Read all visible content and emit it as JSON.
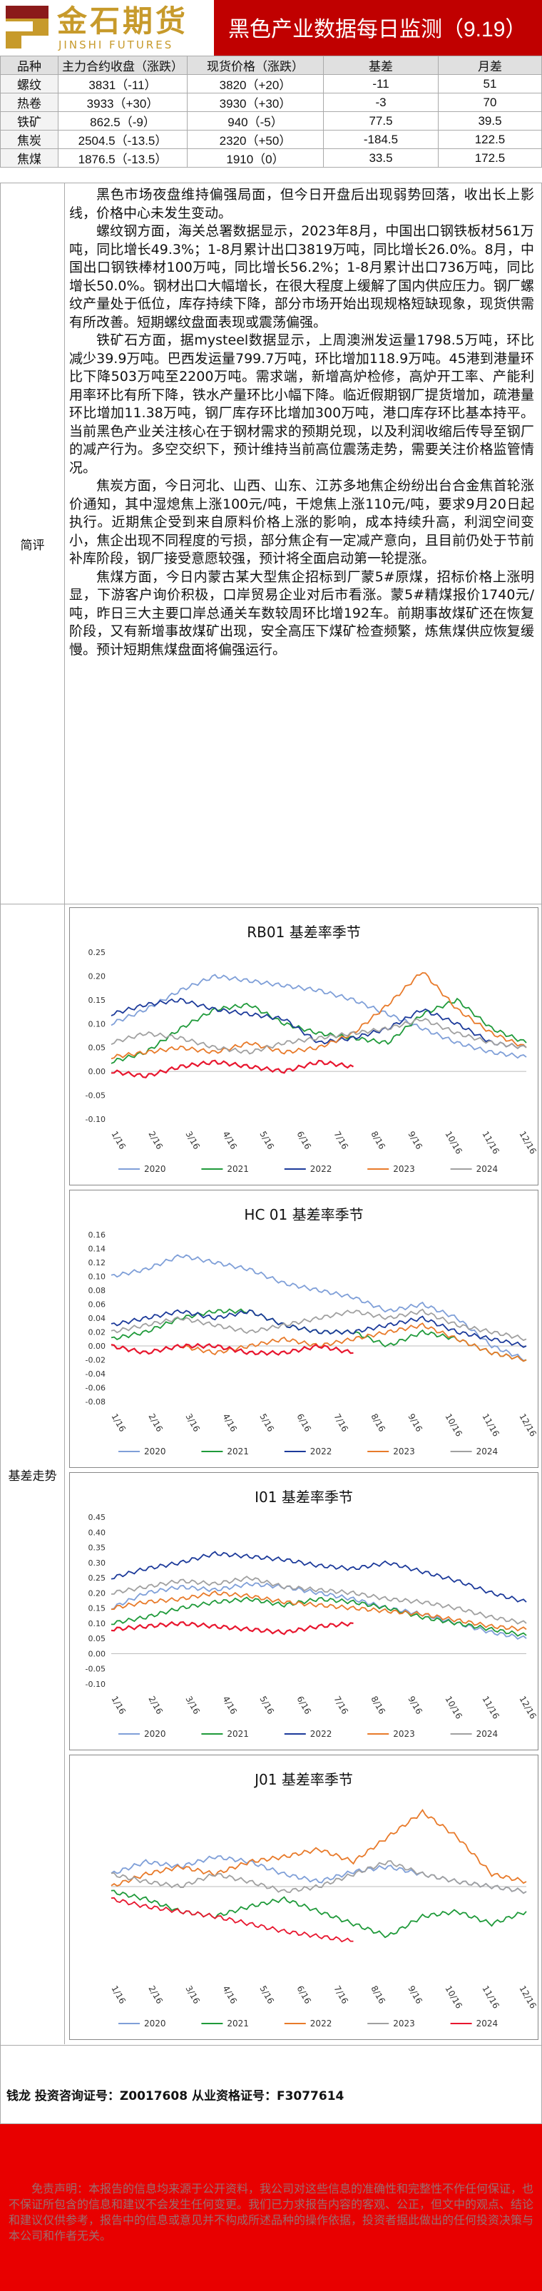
{
  "header": {
    "logo_cn": "金石期货",
    "logo_en": "JINSHI FUTURES",
    "title": "黑色产业数据每日监测（9.19）"
  },
  "table": {
    "headers": [
      "品种",
      "主力合约收盘（涨跌）",
      "现货价格（涨跌）",
      "基差",
      "月差"
    ],
    "rows": [
      [
        "螺纹",
        "3831（-11）",
        "3820（+20）",
        "-11",
        "51"
      ],
      [
        "热卷",
        "3933（+30）",
        "3930（+30）",
        "-3",
        "70"
      ],
      [
        "铁矿",
        "862.5（-9）",
        "940（-5）",
        "77.5",
        "39.5"
      ],
      [
        "焦炭",
        "2504.5（-13.5）",
        "2320（+50）",
        "-184.5",
        "122.5"
      ],
      [
        "焦煤",
        "1876.5（-13.5）",
        "1910（0）",
        "33.5",
        "172.5"
      ]
    ]
  },
  "comment": {
    "label": "简评",
    "paragraphs": [
      "黑色市场夜盘维持偏强局面，但今日开盘后出现弱势回落，收出长上影线，价格中心未发生变动。",
      "螺纹钢方面，海关总署数据显示，2023年8月，中国出口钢铁板材561万吨，同比增长49.3%；1-8月累计出口3819万吨，同比增长26.0%。8月，中国出口钢铁棒材100万吨，同比增长56.2%；1-8月累计出口736万吨，同比增长50.0%。钢材出口大幅增长，在很大程度上缓解了国内供应压力。钢厂螺纹产量处于低位，库存持续下降，部分市场开始出现规格短缺现象，现货供需有所改善。短期螺纹盘面表现或震荡偏强。",
      "铁矿石方面，据mysteel数据显示，上周澳洲发运量1798.5万吨，环比减少39.9万吨。巴西发运量799.7万吨，环比增加118.9万吨。45港到港量环比下降503万吨至2200万吨。需求端，新增高炉检修，高炉开工率、产能利用率环比有所下降，铁水产量环比小幅下降。临近假期钢厂提货增加，疏港量环比增加11.38万吨，钢厂库存环比增加300万吨，港口库存环比基本持平。当前黑色产业关注核心在于钢材需求的预期兑现，以及利润收缩后传导至钢厂的减产行为。多空交织下，预计维持当前高位震荡走势，需要关注价格监管情况。",
      "焦炭方面，今日河北、山西、山东、江苏多地焦企纷纷出台合金焦首轮涨价通知，其中湿熄焦上涨100元/吨，干熄焦上涨110元/吨，要求9月20日起执行。近期焦企受到来自原料价格上涨的影响，成本持续升高，利润空间变小，焦企出现不同程度的亏损，部分焦企有一定减产意向，且目前仍处于节前补库阶段，钢厂接受意愿较强，预计将全面启动第一轮提涨。",
      "焦煤方面，今日内蒙古某大型焦企招标到厂蒙5#原煤，招标价格上涨明显，下游客户询价积极，口岸贸易企业对后市看涨。蒙5#精煤报价1740元/吨，昨日三大主要口岸总通关车数较周环比增192车。前期事故煤矿还在恢复阶段，又有新增事故煤矿出现，安全高压下煤矿检查频繁，炼焦煤供应恢复缓慢。预计短期焦煤盘面将偏强运行。"
    ]
  },
  "charts_label": "基差走势",
  "chart_data": [
    {
      "type": "line",
      "title": "RB01 基差率季节",
      "x_ticks": [
        "1/16",
        "2/16",
        "3/16",
        "4/16",
        "5/16",
        "6/16",
        "7/16",
        "8/16",
        "9/16",
        "10/16",
        "11/16",
        "12/16"
      ],
      "ylim": [
        -0.1,
        0.25
      ],
      "y_ticks": [
        -0.1,
        -0.05,
        0,
        0.05,
        0.1,
        0.15,
        0.2,
        0.25
      ],
      "series": [
        {
          "name": "2020",
          "color": "#7f9fd8",
          "values": [
            0.1,
            0.13,
            0.17,
            0.2,
            0.19,
            0.18,
            0.17,
            0.15,
            0.12,
            0.09,
            0.06,
            0.04,
            0.03
          ]
        },
        {
          "name": "2021",
          "color": "#1f9a3a",
          "values": [
            0.02,
            0.04,
            0.09,
            0.13,
            0.14,
            0.1,
            0.08,
            0.07,
            0.06,
            0.12,
            0.15,
            0.09,
            0.06
          ]
        },
        {
          "name": "2022",
          "color": "#1c3a9a",
          "values": [
            0.12,
            0.14,
            0.15,
            0.13,
            0.12,
            0.11,
            0.06,
            0.07,
            0.09,
            0.13,
            0.1,
            0.06,
            0.05
          ]
        },
        {
          "name": "2023",
          "color": "#e87a2a",
          "values": [
            0.03,
            0.04,
            0.05,
            0.04,
            0.06,
            0.04,
            0.05,
            0.08,
            0.14,
            0.21,
            0.13,
            0.08,
            0.05
          ]
        },
        {
          "name": "2024",
          "color": "#a0a0a0",
          "values": [
            0.06,
            0.08,
            0.07,
            0.05,
            0.04,
            0.06,
            0.07,
            0.08,
            0.09,
            0.11,
            0.08,
            0.06,
            0.05
          ]
        }
      ],
      "current": {
        "name": "2024",
        "color": "#e8162e",
        "values": [
          0.0,
          -0.01,
          0.01,
          0.02,
          0.01,
          0.0,
          0.02,
          0.01
        ]
      }
    },
    {
      "type": "line",
      "title": "HC 01 基差率季节",
      "x_ticks": [
        "1/16",
        "2/16",
        "3/16",
        "4/16",
        "5/16",
        "6/16",
        "7/16",
        "8/16",
        "9/16",
        "10/16",
        "11/16",
        "12/16"
      ],
      "ylim": [
        -0.08,
        0.16
      ],
      "y_ticks": [
        -0.08,
        -0.06,
        -0.04,
        -0.02,
        0,
        0.02,
        0.04,
        0.06,
        0.08,
        0.1,
        0.12,
        0.14,
        0.16
      ],
      "series": [
        {
          "name": "2020",
          "color": "#7f9fd8",
          "values": [
            0.1,
            0.11,
            0.13,
            0.12,
            0.11,
            0.09,
            0.08,
            0.07,
            0.05,
            0.06,
            0.04,
            0.0,
            -0.02
          ]
        },
        {
          "name": "2021",
          "color": "#1f9a3a",
          "values": [
            0.01,
            0.02,
            0.04,
            0.05,
            0.05,
            0.03,
            0.02,
            0.02,
            0.0,
            0.02,
            0.01,
            -0.01,
            -0.02
          ]
        },
        {
          "name": "2022",
          "color": "#1c3a9a",
          "values": [
            0.03,
            0.04,
            0.05,
            0.04,
            0.05,
            0.03,
            0.02,
            0.02,
            0.03,
            0.04,
            0.02,
            0.01,
            0.0
          ]
        },
        {
          "name": "2023",
          "color": "#e87a2a",
          "values": [
            0.0,
            -0.01,
            0.0,
            -0.01,
            0.0,
            0.01,
            0.0,
            0.01,
            0.02,
            0.03,
            0.01,
            -0.01,
            -0.02
          ]
        },
        {
          "name": "2024",
          "color": "#a0a0a0",
          "values": [
            0.02,
            0.03,
            0.04,
            0.03,
            0.02,
            0.03,
            0.04,
            0.05,
            0.04,
            0.05,
            0.03,
            0.02,
            0.01
          ]
        }
      ],
      "current": {
        "name": "2024",
        "color": "#e8162e",
        "values": [
          0.0,
          -0.01,
          0.0,
          0.0,
          -0.01,
          -0.01,
          0.0,
          -0.01
        ]
      }
    },
    {
      "type": "line",
      "title": "I01 基差率季节",
      "x_ticks": [
        "1/16",
        "2/16",
        "3/16",
        "4/16",
        "5/16",
        "6/16",
        "7/16",
        "8/16",
        "9/16",
        "10/16",
        "11/16",
        "12/16"
      ],
      "ylim": [
        -0.1,
        0.45
      ],
      "y_ticks": [
        -0.1,
        -0.05,
        0,
        0.05,
        0.1,
        0.15,
        0.2,
        0.25,
        0.3,
        0.35,
        0.4,
        0.45
      ],
      "series": [
        {
          "name": "2020",
          "color": "#7f9fd8",
          "values": [
            0.15,
            0.2,
            0.22,
            0.21,
            0.23,
            0.22,
            0.2,
            0.18,
            0.15,
            0.13,
            0.1,
            0.07,
            0.05
          ]
        },
        {
          "name": "2021",
          "color": "#1f9a3a",
          "values": [
            0.1,
            0.12,
            0.15,
            0.17,
            0.18,
            0.16,
            0.18,
            0.17,
            0.15,
            0.12,
            0.1,
            0.08,
            0.06
          ]
        },
        {
          "name": "2022",
          "color": "#1c3a9a",
          "values": [
            0.25,
            0.28,
            0.3,
            0.33,
            0.32,
            0.31,
            0.29,
            0.28,
            0.3,
            0.27,
            0.24,
            0.2,
            0.17
          ]
        },
        {
          "name": "2023",
          "color": "#e87a2a",
          "values": [
            0.15,
            0.17,
            0.18,
            0.2,
            0.19,
            0.17,
            0.16,
            0.15,
            0.14,
            0.13,
            0.11,
            0.09,
            0.08
          ]
        },
        {
          "name": "2024",
          "color": "#a0a0a0",
          "values": [
            0.2,
            0.22,
            0.24,
            0.23,
            0.25,
            0.22,
            0.21,
            0.2,
            0.18,
            0.17,
            0.15,
            0.12,
            0.1
          ]
        }
      ],
      "current": {
        "name": "2024",
        "color": "#e8162e",
        "values": [
          0.08,
          0.09,
          0.1,
          0.09,
          0.08,
          0.07,
          0.09,
          0.1
        ]
      }
    },
    {
      "type": "line",
      "title": "J01 基差率季节",
      "x_ticks": [
        "1/16",
        "2/16",
        "3/16",
        "4/16",
        "5/16",
        "6/16",
        "7/16",
        "8/16",
        "9/16",
        "10/16",
        "11/16",
        "12/16"
      ],
      "ylim": [
        -0.35,
        0.35
      ],
      "y_ticks": [],
      "series": [
        {
          "name": "2020",
          "color": "#7f9fd8",
          "values": [
            0.05,
            0.1,
            0.08,
            0.12,
            0.1,
            0.05,
            0.02,
            0.06,
            0.08,
            0.05,
            0.02,
            0.0,
            -0.02
          ]
        },
        {
          "name": "2021",
          "color": "#1f9a3a",
          "values": [
            -0.02,
            -0.05,
            -0.1,
            -0.12,
            -0.08,
            -0.05,
            -0.1,
            -0.15,
            -0.2,
            -0.12,
            -0.1,
            -0.15,
            -0.1
          ]
        },
        {
          "name": "2022",
          "color": "#e87a2a",
          "values": [
            0.0,
            0.05,
            0.08,
            0.05,
            0.1,
            0.12,
            0.15,
            0.1,
            0.2,
            0.3,
            0.2,
            0.05,
            0.02
          ]
        },
        {
          "name": "2023",
          "color": "#a0a0a0",
          "values": [
            0.05,
            0.02,
            0.0,
            0.05,
            0.02,
            -0.02,
            0.0,
            0.05,
            0.1,
            0.05,
            0.02,
            0.0,
            -0.02
          ]
        },
        {
          "name": "2024",
          "color": "#e8162e",
          "values": [
            -0.05,
            -0.08,
            -0.1,
            -0.12,
            -0.15,
            -0.18,
            -0.2,
            -0.22
          ]
        }
      ]
    }
  ],
  "footer": {
    "contact": "钱龙 投资咨询证号：Z0017608 从业资格证号：F3077614",
    "disclaimer": "免责声明：本报告的信息均来源于公开资料，我公司对这些信息的准确性和完整性不作任何保证，也不保证所包含的信息和建议不会发生任何变更。我们已力求报告内容的客观、公正，但文中的观点、结论和建议仅供参考，报告中的信息或意见并不构成所述品种的操作依据，投资者据此做出的任何投资决策与本公司和作者无关。"
  }
}
